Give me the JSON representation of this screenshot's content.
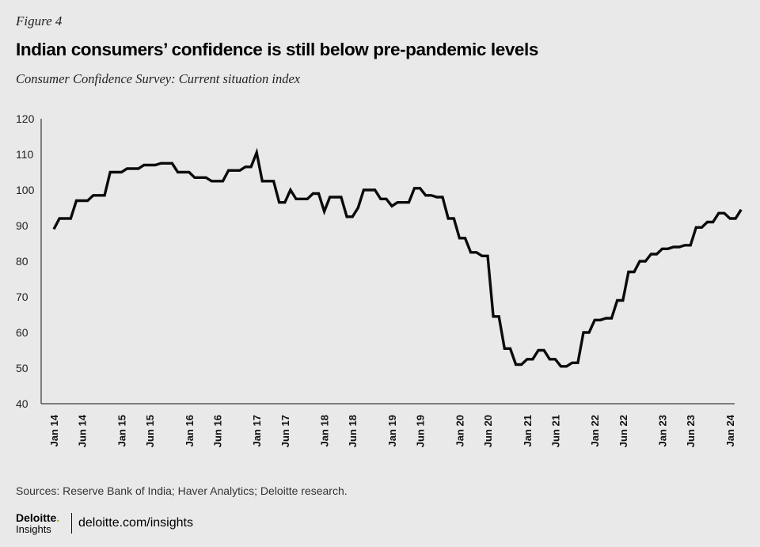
{
  "figure_label": "Figure 4",
  "chart_data": {
    "type": "line",
    "title": "Indian consumers’ confidence is still below pre-pandemic levels",
    "subtitle": "Consumer Confidence Survey: Current situation index",
    "xlabel": "",
    "ylabel": "",
    "ylim": [
      40,
      120
    ],
    "yticks": [
      40,
      50,
      60,
      70,
      80,
      90,
      100,
      110,
      120
    ],
    "x_tick_labels": [
      "Jan 14",
      "Jun 14",
      "Jan 15",
      "Jun 15",
      "Jan 16",
      "Jun 16",
      "Jan 17",
      "Jun 17",
      "Jan 18",
      "Jun 18",
      "Jan 19",
      "Jun 19",
      "Jan 20",
      "Jun 20",
      "Jan 21",
      "Jun 21",
      "Jan 22",
      "Jun 22",
      "Jan 23",
      "Jun 23",
      "Jan 24"
    ],
    "x_tick_month_index": [
      0,
      5,
      12,
      17,
      24,
      29,
      36,
      41,
      48,
      53,
      60,
      65,
      72,
      77,
      84,
      89,
      96,
      101,
      108,
      113,
      120
    ],
    "x_range_months": [
      0,
      120
    ],
    "series": [
      {
        "name": "Current situation index",
        "points": [
          [
            0,
            89
          ],
          [
            1,
            92
          ],
          [
            3,
            92
          ],
          [
            4,
            97
          ],
          [
            6,
            97
          ],
          [
            7,
            98.5
          ],
          [
            9,
            98.5
          ],
          [
            10,
            105
          ],
          [
            12,
            105
          ],
          [
            13,
            106
          ],
          [
            15,
            106
          ],
          [
            16,
            107
          ],
          [
            18,
            107
          ],
          [
            19,
            107.5
          ],
          [
            21,
            107.5
          ],
          [
            22,
            105
          ],
          [
            24,
            105
          ],
          [
            25,
            103.5
          ],
          [
            27,
            103.5
          ],
          [
            28,
            102.5
          ],
          [
            30,
            102.5
          ],
          [
            31,
            105.5
          ],
          [
            33,
            105.5
          ],
          [
            34,
            106.5
          ],
          [
            35,
            106.5
          ],
          [
            36,
            110.5
          ],
          [
            37,
            102.5
          ],
          [
            39,
            102.5
          ],
          [
            40,
            96.5
          ],
          [
            41,
            96.5
          ],
          [
            42,
            100
          ],
          [
            43,
            97.5
          ],
          [
            45,
            97.5
          ],
          [
            46,
            99
          ],
          [
            47,
            99
          ],
          [
            48,
            94
          ],
          [
            49,
            98
          ],
          [
            51,
            98
          ],
          [
            52,
            92.5
          ],
          [
            53,
            92.5
          ],
          [
            54,
            95
          ],
          [
            55,
            100
          ],
          [
            57,
            100
          ],
          [
            58,
            97.5
          ],
          [
            59,
            97.5
          ],
          [
            60,
            95.5
          ],
          [
            61,
            96.5
          ],
          [
            63,
            96.5
          ],
          [
            64,
            100.5
          ],
          [
            65,
            100.5
          ],
          [
            66,
            98.5
          ],
          [
            67,
            98.5
          ],
          [
            68,
            98
          ],
          [
            69,
            98
          ],
          [
            70,
            92
          ],
          [
            71,
            92
          ],
          [
            72,
            86.5
          ],
          [
            73,
            86.5
          ],
          [
            74,
            82.5
          ],
          [
            75,
            82.5
          ],
          [
            76,
            81.5
          ],
          [
            77,
            81.5
          ],
          [
            78,
            64.5
          ],
          [
            79,
            64.5
          ],
          [
            80,
            55.5
          ],
          [
            81,
            55.5
          ],
          [
            82,
            51
          ],
          [
            83,
            51
          ],
          [
            84,
            52.5
          ],
          [
            85,
            52.5
          ],
          [
            86,
            55
          ],
          [
            87,
            55
          ],
          [
            88,
            52.5
          ],
          [
            89,
            52.5
          ],
          [
            90,
            50.5
          ],
          [
            91,
            50.5
          ],
          [
            92,
            51.5
          ],
          [
            93,
            51.5
          ],
          [
            94,
            60
          ],
          [
            95,
            60
          ],
          [
            96,
            63.5
          ],
          [
            97,
            63.5
          ],
          [
            98,
            64
          ],
          [
            99,
            64
          ],
          [
            100,
            69
          ],
          [
            101,
            69
          ],
          [
            102,
            77
          ],
          [
            103,
            77
          ],
          [
            104,
            80
          ],
          [
            105,
            80
          ],
          [
            106,
            82
          ],
          [
            107,
            82
          ],
          [
            108,
            83.5
          ],
          [
            109,
            83.5
          ],
          [
            110,
            84
          ],
          [
            111,
            84
          ],
          [
            112,
            84.5
          ],
          [
            113,
            84.5
          ],
          [
            114,
            89.5
          ],
          [
            115,
            89.5
          ],
          [
            116,
            91
          ],
          [
            117,
            91
          ],
          [
            118,
            93.5
          ],
          [
            119,
            93.5
          ],
          [
            120,
            92
          ],
          [
            121,
            92
          ],
          [
            122,
            94.5
          ]
        ]
      }
    ],
    "grid": false,
    "legend": "none"
  },
  "sources": "Sources: Reserve Bank of India; Haver Analytics; Deloitte research.",
  "brand": {
    "name": "Deloitte",
    "dot": ".",
    "sub": "Insights",
    "url": "deloitte.com/insights",
    "accent_color": "#86bc25"
  },
  "colors": {
    "background": "#e9e9e9",
    "line": "#0b0b0b",
    "axis": "#111111"
  }
}
